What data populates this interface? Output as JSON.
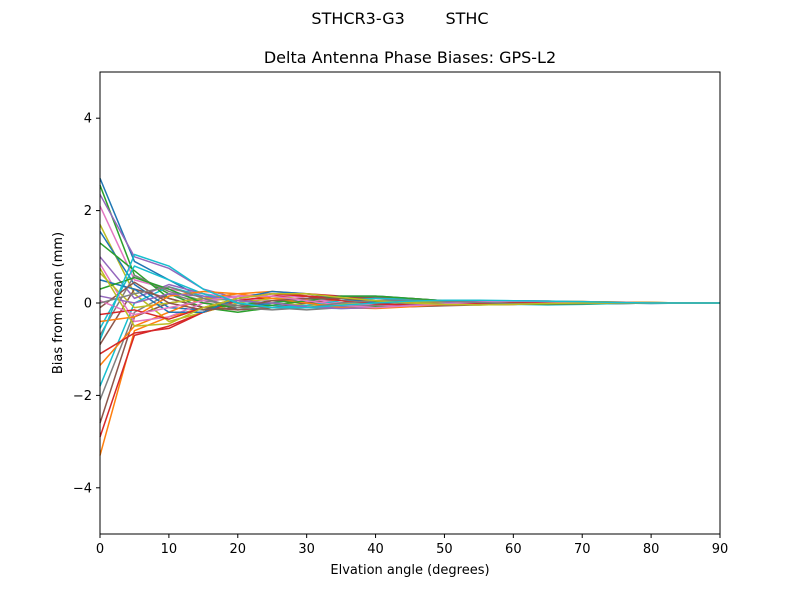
{
  "figure": {
    "suptitle": "STHCR3-G3        STHC"
  },
  "chart_data": {
    "type": "line",
    "title": "Delta Antenna Phase Biases: GPS-L2",
    "xlabel": "Elvation angle (degrees)",
    "ylabel": "Bias from mean (mm)",
    "xlim": [
      0,
      90
    ],
    "ylim": [
      -5,
      5
    ],
    "xticks": [
      0,
      10,
      20,
      30,
      40,
      50,
      60,
      70,
      80,
      90
    ],
    "yticks": [
      -4,
      -2,
      0,
      2,
      4
    ],
    "xtick_labels": [
      "0",
      "10",
      "20",
      "30",
      "40",
      "50",
      "60",
      "70",
      "80",
      "90"
    ],
    "ytick_labels": [
      "−4",
      "−2",
      "0",
      "2",
      "4"
    ],
    "grid": false,
    "legend": "none",
    "x": [
      0,
      5,
      10,
      15,
      20,
      25,
      30,
      35,
      40,
      45,
      50,
      55,
      60,
      65,
      70,
      75,
      80,
      85,
      90
    ],
    "colors": [
      "#1f77b4",
      "#ff7f0e",
      "#2ca02c",
      "#d62728",
      "#9467bd",
      "#8c564b",
      "#e377c2",
      "#7f7f7f",
      "#bcbd22",
      "#17becf"
    ],
    "series": [
      {
        "values": [
          2.7,
          0.9,
          0.5,
          0.1,
          -0.15,
          -0.1,
          -0.05,
          0.0,
          0.02,
          0.03,
          0.02,
          0.01,
          0.0,
          0.01,
          0.0,
          0.0,
          -0.01,
          0.0,
          0.0
        ]
      },
      {
        "values": [
          -3.3,
          -0.6,
          -0.3,
          -0.1,
          0.05,
          0.1,
          0.08,
          0.05,
          0.03,
          0.02,
          0.0,
          -0.02,
          -0.02,
          -0.01,
          0.0,
          0.0,
          0.0,
          0.0,
          0.0
        ]
      },
      {
        "values": [
          2.55,
          0.6,
          0.2,
          -0.1,
          -0.2,
          -0.1,
          -0.05,
          0.0,
          0.02,
          0.03,
          0.04,
          0.03,
          0.02,
          0.01,
          0.0,
          0.01,
          0.0,
          0.0,
          0.0
        ]
      },
      {
        "values": [
          -2.9,
          -0.7,
          -0.5,
          -0.2,
          0.0,
          0.15,
          0.2,
          0.15,
          0.1,
          0.05,
          0.0,
          -0.02,
          -0.03,
          -0.02,
          -0.01,
          0.0,
          0.0,
          0.0,
          0.0
        ]
      },
      {
        "values": [
          2.35,
          1.0,
          0.75,
          0.3,
          0.1,
          -0.05,
          -0.1,
          -0.08,
          -0.05,
          -0.02,
          0.0,
          0.02,
          0.03,
          0.03,
          0.02,
          0.01,
          0.0,
          0.0,
          0.0
        ]
      },
      {
        "values": [
          -2.6,
          -0.3,
          0.0,
          0.1,
          0.15,
          0.2,
          0.15,
          0.05,
          -0.05,
          -0.08,
          -0.06,
          -0.04,
          -0.02,
          0.0,
          0.01,
          0.01,
          0.0,
          0.0,
          0.0
        ]
      },
      {
        "values": [
          2.1,
          0.5,
          0.3,
          0.2,
          0.1,
          0.05,
          0.03,
          0.0,
          -0.03,
          -0.05,
          -0.04,
          -0.02,
          0.0,
          0.02,
          0.02,
          0.01,
          0.0,
          0.0,
          0.0
        ]
      },
      {
        "values": [
          -2.1,
          -0.2,
          0.2,
          0.0,
          -0.1,
          -0.05,
          0.05,
          0.1,
          0.1,
          0.05,
          0.02,
          0.0,
          -0.02,
          -0.03,
          -0.02,
          -0.01,
          0.0,
          0.0,
          0.0
        ]
      },
      {
        "values": [
          1.7,
          0.2,
          -0.4,
          -0.2,
          0.0,
          0.1,
          0.15,
          0.1,
          0.05,
          0.0,
          -0.03,
          -0.04,
          -0.03,
          -0.01,
          0.0,
          0.01,
          0.0,
          0.0,
          0.0
        ]
      },
      {
        "values": [
          -1.8,
          0.0,
          0.35,
          0.15,
          0.05,
          -0.05,
          -0.1,
          -0.12,
          -0.1,
          -0.05,
          0.0,
          0.03,
          0.04,
          0.03,
          0.02,
          0.0,
          0.0,
          0.0,
          0.0
        ]
      },
      {
        "values": [
          1.55,
          0.4,
          -0.1,
          -0.15,
          -0.1,
          0.0,
          0.1,
          0.15,
          0.15,
          0.1,
          0.05,
          0.0,
          -0.02,
          -0.03,
          -0.02,
          -0.01,
          0.0,
          0.0,
          0.0
        ]
      },
      {
        "values": [
          -1.35,
          -0.5,
          -0.2,
          0.1,
          0.2,
          0.25,
          0.2,
          0.1,
          0.0,
          -0.05,
          -0.05,
          -0.03,
          0.0,
          0.02,
          0.03,
          0.02,
          0.01,
          0.0,
          0.0
        ]
      },
      {
        "values": [
          1.3,
          0.7,
          0.1,
          -0.1,
          -0.05,
          0.05,
          0.0,
          -0.05,
          -0.08,
          -0.06,
          -0.03,
          0.0,
          0.02,
          0.03,
          0.03,
          0.02,
          0.01,
          0.0,
          0.0
        ]
      },
      {
        "values": [
          -1.1,
          -0.65,
          -0.55,
          -0.2,
          0.05,
          0.15,
          0.15,
          0.1,
          0.05,
          0.02,
          0.0,
          -0.01,
          -0.02,
          -0.02,
          -0.01,
          0.0,
          0.0,
          0.0,
          0.0
        ]
      },
      {
        "values": [
          1.0,
          0.1,
          0.4,
          0.2,
          0.0,
          -0.1,
          -0.1,
          -0.05,
          0.0,
          0.03,
          0.05,
          0.04,
          0.03,
          0.02,
          0.01,
          0.0,
          0.0,
          0.0,
          0.0
        ]
      },
      {
        "values": [
          -0.9,
          0.3,
          0.1,
          -0.1,
          -0.15,
          -0.1,
          0.0,
          0.1,
          0.12,
          0.1,
          0.05,
          0.02,
          0.0,
          -0.02,
          -0.02,
          -0.01,
          0.0,
          0.0,
          0.0
        ]
      },
      {
        "values": [
          0.85,
          -0.4,
          -0.3,
          0.0,
          0.15,
          0.2,
          0.1,
          0.0,
          -0.05,
          -0.05,
          -0.03,
          0.0,
          0.02,
          0.02,
          0.01,
          0.0,
          0.0,
          0.0,
          0.0
        ]
      },
      {
        "values": [
          -0.7,
          0.6,
          0.25,
          0.05,
          -0.05,
          -0.1,
          -0.15,
          -0.1,
          -0.05,
          0.0,
          0.03,
          0.05,
          0.05,
          0.04,
          0.02,
          0.01,
          0.0,
          0.0,
          0.0
        ]
      },
      {
        "values": [
          0.65,
          -0.1,
          0.0,
          0.1,
          0.05,
          0.0,
          -0.05,
          -0.03,
          0.0,
          0.02,
          0.03,
          0.02,
          0.0,
          -0.01,
          -0.01,
          0.0,
          0.0,
          0.0,
          0.0
        ]
      },
      {
        "values": [
          -0.55,
          0.8,
          0.5,
          0.2,
          0.0,
          -0.1,
          -0.05,
          0.05,
          0.1,
          0.08,
          0.04,
          0.0,
          -0.03,
          -0.04,
          -0.03,
          -0.01,
          0.0,
          0.0,
          0.0
        ]
      },
      {
        "values": [
          0.5,
          0.3,
          -0.2,
          -0.2,
          0.1,
          0.25,
          0.2,
          0.1,
          0.0,
          -0.05,
          -0.04,
          -0.02,
          0.0,
          0.02,
          0.02,
          0.01,
          0.0,
          0.0,
          0.0
        ]
      },
      {
        "values": [
          -0.4,
          -0.3,
          0.15,
          0.25,
          0.2,
          0.1,
          0.0,
          -0.1,
          -0.12,
          -0.08,
          -0.03,
          0.0,
          0.03,
          0.04,
          0.03,
          0.02,
          0.01,
          0.0,
          0.0
        ]
      },
      {
        "values": [
          0.3,
          0.55,
          0.3,
          0.0,
          -0.1,
          -0.05,
          0.05,
          0.15,
          0.15,
          0.1,
          0.05,
          0.0,
          -0.02,
          -0.03,
          -0.02,
          0.0,
          0.0,
          0.0,
          0.0
        ]
      },
      {
        "values": [
          -0.25,
          -0.15,
          -0.35,
          -0.1,
          0.1,
          0.2,
          0.15,
          0.05,
          -0.02,
          -0.04,
          -0.03,
          -0.01,
          0.01,
          0.02,
          0.02,
          0.01,
          0.0,
          0.0,
          0.0
        ]
      },
      {
        "values": [
          0.15,
          0.0,
          0.2,
          0.15,
          0.05,
          0.0,
          -0.08,
          -0.12,
          -0.1,
          -0.05,
          0.0,
          0.04,
          0.05,
          0.04,
          0.02,
          0.01,
          0.0,
          0.0,
          0.0
        ]
      },
      {
        "values": [
          -0.1,
          0.45,
          0.0,
          -0.15,
          -0.1,
          0.05,
          0.1,
          0.1,
          0.05,
          0.0,
          -0.03,
          -0.04,
          -0.03,
          -0.01,
          0.0,
          0.0,
          0.0,
          0.0,
          0.0
        ]
      },
      {
        "values": [
          0.05,
          -0.25,
          -0.1,
          0.05,
          0.15,
          0.15,
          0.05,
          -0.05,
          -0.1,
          -0.06,
          -0.02,
          0.02,
          0.04,
          0.03,
          0.02,
          0.01,
          0.0,
          0.0,
          0.0
        ]
      },
      {
        "values": [
          0.0,
          0.2,
          0.35,
          0.1,
          -0.1,
          -0.15,
          -0.1,
          0.0,
          0.05,
          0.06,
          0.04,
          0.01,
          -0.01,
          -0.02,
          -0.01,
          0.0,
          0.0,
          0.0,
          0.0
        ]
      },
      {
        "values": [
          0.75,
          -0.5,
          -0.45,
          -0.1,
          0.1,
          0.2,
          0.2,
          0.12,
          0.05,
          0.0,
          -0.03,
          -0.04,
          -0.03,
          -0.01,
          0.0,
          0.0,
          0.0,
          0.0,
          0.0
        ]
      },
      {
        "values": [
          -0.8,
          1.05,
          0.8,
          0.3,
          0.0,
          -0.1,
          -0.1,
          -0.05,
          0.0,
          0.04,
          0.06,
          0.06,
          0.05,
          0.04,
          0.03,
          0.01,
          0.0,
          0.0,
          0.0
        ]
      }
    ]
  }
}
